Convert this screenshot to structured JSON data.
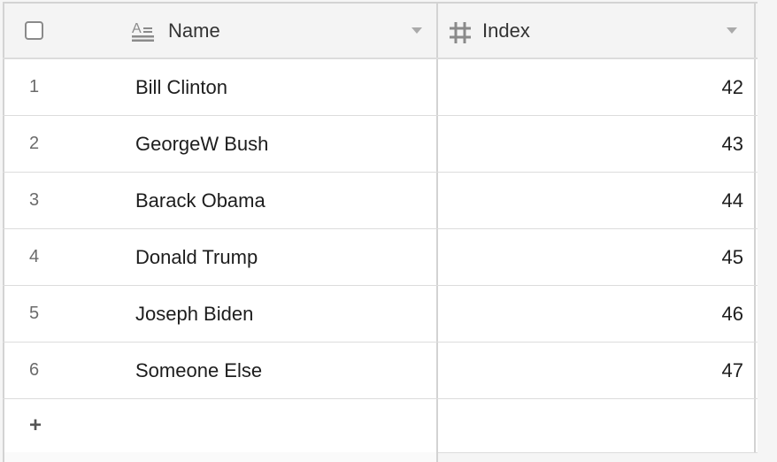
{
  "columns": {
    "name": {
      "label": "Name",
      "icon": "text-field-icon"
    },
    "index": {
      "label": "Index",
      "icon": "hash-icon"
    }
  },
  "rows": [
    {
      "num": "1",
      "name": "Bill Clinton",
      "index": "42"
    },
    {
      "num": "2",
      "name": "GeorgeW Bush",
      "index": "43"
    },
    {
      "num": "3",
      "name": "Barack Obama",
      "index": "44"
    },
    {
      "num": "4",
      "name": "Donald Trump",
      "index": "45"
    },
    {
      "num": "5",
      "name": "Joseph Biden",
      "index": "46"
    },
    {
      "num": "6",
      "name": "Someone Else",
      "index": "47"
    }
  ],
  "add_row": {
    "label": "+"
  }
}
